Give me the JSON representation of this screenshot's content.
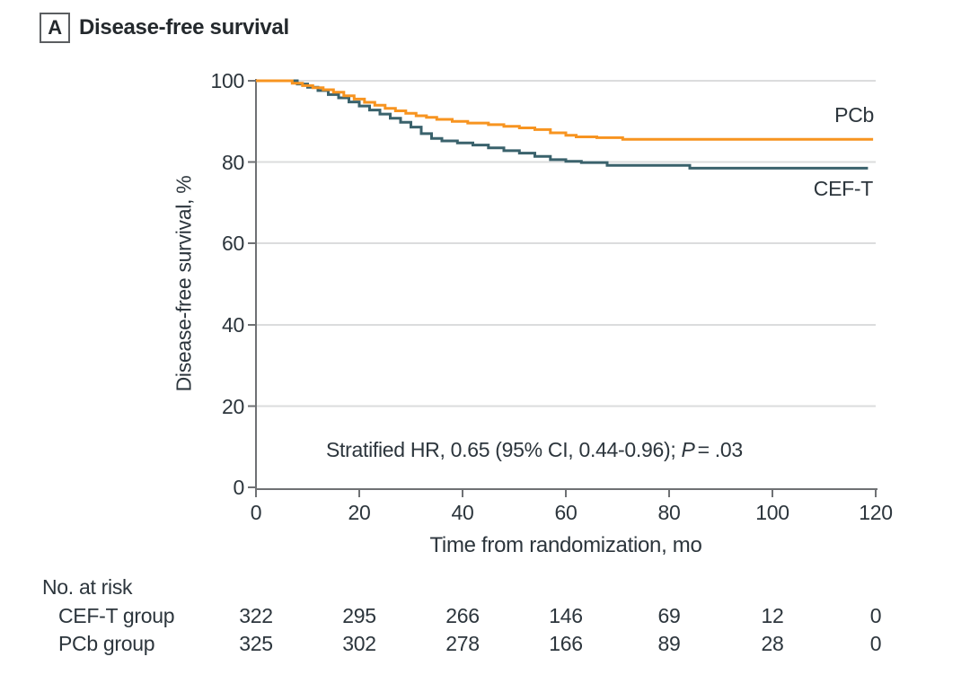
{
  "panel": {
    "letter": "A",
    "title": "Disease-free survival"
  },
  "colors": {
    "axis": "#6F7174",
    "grid": "#DBDCDD",
    "text": "#2C353C",
    "pcb_orange": "#F79420",
    "ceft_teal": "#3A626C"
  },
  "chart_data": {
    "type": "line",
    "subtype": "kaplan-meier-step",
    "title": "Disease-free survival",
    "xlabel": "Time from randomization, mo",
    "ylabel": "Disease-free survival, %",
    "xlim": [
      0,
      120
    ],
    "ylim": [
      0,
      100
    ],
    "grid": "horizontal",
    "legend_position": "inline-right",
    "x_ticks": [
      0,
      20,
      40,
      60,
      80,
      100,
      120
    ],
    "y_ticks": [
      0,
      20,
      40,
      60,
      80,
      100
    ],
    "y_tick_labels_top_to_bottom": [
      "100",
      "80",
      "60",
      "40",
      "20",
      "0"
    ],
    "annotation": {
      "prefix": "Stratified HR, 0.65 (95% CI, 0.44-0.96); ",
      "p_symbol": "P",
      "p_value": "= .03"
    },
    "series": [
      {
        "name": "CEF-T",
        "color": "#3A626C",
        "points": [
          [
            0,
            100
          ],
          [
            6,
            100
          ],
          [
            8,
            99.2
          ],
          [
            10,
            98.4
          ],
          [
            12,
            97.6
          ],
          [
            14,
            96.6
          ],
          [
            16,
            95.8
          ],
          [
            18,
            94.8
          ],
          [
            20,
            93.8
          ],
          [
            22,
            92.8
          ],
          [
            24,
            91.8
          ],
          [
            26,
            90.8
          ],
          [
            28,
            89.8
          ],
          [
            30,
            88.6
          ],
          [
            32,
            87.0
          ],
          [
            34,
            85.8
          ],
          [
            36,
            85.2
          ],
          [
            39,
            84.7
          ],
          [
            42,
            84.2
          ],
          [
            45,
            83.5
          ],
          [
            48,
            82.8
          ],
          [
            51,
            82.2
          ],
          [
            54,
            81.4
          ],
          [
            57,
            80.6
          ],
          [
            60,
            80.2
          ],
          [
            63,
            79.9
          ],
          [
            68,
            79.2
          ],
          [
            84,
            78.5
          ],
          [
            118.5,
            78.5
          ]
        ]
      },
      {
        "name": "PCb",
        "color": "#F79420",
        "points": [
          [
            0,
            100
          ],
          [
            5,
            100
          ],
          [
            7,
            99.4
          ],
          [
            9,
            98.8
          ],
          [
            11,
            98.3
          ],
          [
            13,
            97.8
          ],
          [
            15,
            97.2
          ],
          [
            17,
            96.3
          ],
          [
            19,
            95.5
          ],
          [
            21,
            94.7
          ],
          [
            23,
            94.0
          ],
          [
            25,
            93.2
          ],
          [
            27,
            92.6
          ],
          [
            29,
            92.0
          ],
          [
            31,
            91.4
          ],
          [
            33,
            91.0
          ],
          [
            35,
            90.5
          ],
          [
            38,
            90.0
          ],
          [
            41,
            89.6
          ],
          [
            45,
            89.2
          ],
          [
            48,
            88.8
          ],
          [
            51,
            88.4
          ],
          [
            54,
            88.0
          ],
          [
            57,
            87.2
          ],
          [
            60,
            86.6
          ],
          [
            62,
            86.2
          ],
          [
            66,
            86.0
          ],
          [
            71,
            85.6
          ],
          [
            119.5,
            85.6
          ]
        ]
      }
    ]
  },
  "risk_table": {
    "heading": "No. at risk",
    "rows": [
      {
        "label": "CEF-T group",
        "values": [
          "322",
          "295",
          "266",
          "146",
          "69",
          "12",
          "0"
        ]
      },
      {
        "label": "PCb group",
        "values": [
          "325",
          "302",
          "278",
          "166",
          "89",
          "28",
          "0"
        ]
      }
    ]
  }
}
